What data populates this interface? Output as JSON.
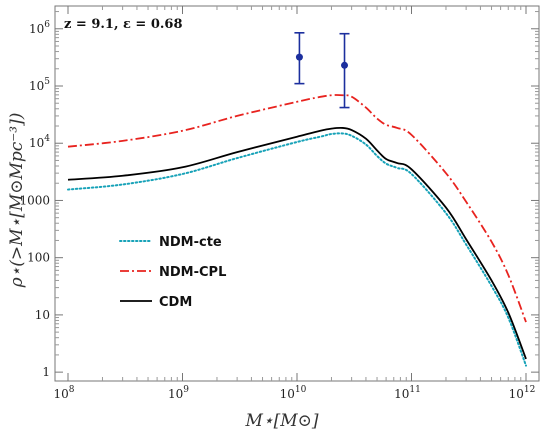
{
  "chart_data": {
    "type": "line",
    "title": "",
    "annotation": "z = 9.1, ε = 0.68",
    "xlabel": "M⋆[M⊙]",
    "ylabel": "ρ⋆(>M⋆[M⊙Mpc⁻³])",
    "xscale": "log",
    "yscale": "log",
    "xlim": [
      100000000.0,
      1000000000000.0
    ],
    "ylim": [
      0.7,
      2500000
    ],
    "x_ticks": [
      {
        "base": "10",
        "exp": "8"
      },
      {
        "base": "10",
        "exp": "9"
      },
      {
        "base": "10",
        "exp": "10"
      },
      {
        "base": "10",
        "exp": "11"
      },
      {
        "base": "10",
        "exp": "12"
      }
    ],
    "y_ticks": [
      {
        "value": 1,
        "base": "1",
        "exp": ""
      },
      {
        "value": 10,
        "base": "10",
        "exp": ""
      },
      {
        "value": 100,
        "base": "100",
        "exp": ""
      },
      {
        "value": 1000,
        "base": "1000",
        "exp": ""
      },
      {
        "value": 10000,
        "base": "10",
        "exp": "4"
      },
      {
        "value": 100000,
        "base": "10",
        "exp": "5"
      },
      {
        "value": 1000000,
        "base": "10",
        "exp": "6"
      }
    ],
    "grid": false,
    "legend_position": "center-left",
    "series": [
      {
        "name": "NDM-cte",
        "color": "#17a2b8",
        "style": "dotted",
        "x": [
          100000000.0,
          300000000.0,
          1000000000.0,
          3000000000.0,
          10000000000.0,
          16000000000.0,
          20000000000.0,
          25000000000.0,
          30000000000.0,
          40000000000.0,
          50000000000.0,
          60000000000.0,
          75000000000.0,
          100000000000.0,
          200000000000.0,
          300000000000.0,
          500000000000.0,
          700000000000.0,
          1000000000000.0
        ],
        "y": [
          1550,
          1900,
          2900,
          5500,
          10500,
          13000,
          14500,
          14800,
          13500,
          9500,
          6000,
          4400,
          3700,
          2900,
          600,
          170,
          32,
          9,
          1.3
        ]
      },
      {
        "name": "NDM-CPL",
        "color": "#e8231f",
        "style": "dashdot",
        "x": [
          100000000.0,
          300000000.0,
          1000000000.0,
          3000000000.0,
          10000000000.0,
          15000000000.0,
          20000000000.0,
          25000000000.0,
          30000000000.0,
          40000000000.0,
          50000000000.0,
          60000000000.0,
          75000000000.0,
          100000000000.0,
          200000000000.0,
          300000000000.0,
          500000000000.0,
          700000000000.0,
          1000000000000.0
        ],
        "y": [
          8700,
          11000,
          16500,
          30000,
          53000,
          63000,
          69000,
          69000,
          65000,
          42000,
          27000,
          21000,
          18500,
          14000,
          3000,
          950,
          190,
          50,
          7.5
        ]
      },
      {
        "name": "CDM",
        "color": "#000000",
        "style": "solid",
        "x": [
          100000000.0,
          300000000.0,
          1000000000.0,
          3000000000.0,
          10000000000.0,
          16000000000.0,
          20000000000.0,
          25000000000.0,
          30000000000.0,
          40000000000.0,
          50000000000.0,
          60000000000.0,
          75000000000.0,
          100000000000.0,
          200000000000.0,
          300000000000.0,
          500000000000.0,
          700000000000.0,
          1000000000000.0
        ],
        "y": [
          2300,
          2700,
          3800,
          7000,
          13000,
          16500,
          18000,
          18500,
          17000,
          12000,
          7500,
          5300,
          4500,
          3500,
          750,
          210,
          40,
          11,
          1.7
        ]
      }
    ],
    "error_points": [
      {
        "x": 10500000000.0,
        "y": 320000,
        "y_low": 110000,
        "y_high": 850000
      },
      {
        "x": 26000000000.0,
        "y": 230000,
        "y_low": 42000,
        "y_high": 820000
      }
    ],
    "error_color": "#1c2f9e"
  }
}
